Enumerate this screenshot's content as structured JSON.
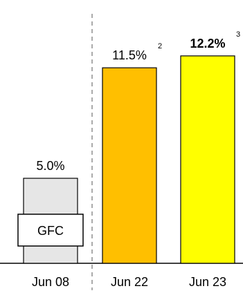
{
  "chart_data": {
    "type": "bar",
    "categories": [
      "Jun 08",
      "Jun 22",
      "Jun 23"
    ],
    "values": [
      5.0,
      11.5,
      12.2
    ],
    "data_labels": [
      "5.0%",
      "11.5%",
      "12.2%"
    ],
    "label_superscripts": [
      "",
      "2",
      "3"
    ],
    "bold_labels": [
      false,
      false,
      true
    ],
    "bar_colors": [
      "#e6e6e6",
      "#ffbf00",
      "#ffff00"
    ],
    "bar_outline": "#000000",
    "annotation": {
      "text": "GFC",
      "category": "Jun 08"
    },
    "divider_after_category": "Jun 08",
    "ylim": [
      0,
      13.13
    ],
    "grid": false,
    "legend": "none",
    "title": "",
    "xlabel": "",
    "ylabel": ""
  }
}
